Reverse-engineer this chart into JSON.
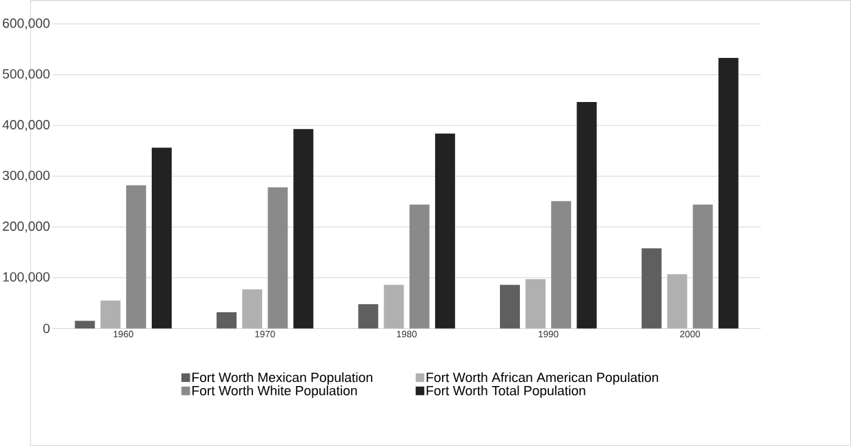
{
  "chart_data": {
    "type": "bar",
    "categories": [
      "1960",
      "1970",
      "1980",
      "1990",
      "2000"
    ],
    "series": [
      {
        "name": "Fort Worth Mexican Population",
        "color": "#5f5f5f",
        "values": [
          15000,
          32000,
          48000,
          86000,
          158000
        ]
      },
      {
        "name": "Fort Worth African American Population",
        "color": "#b0b0b0",
        "values": [
          55000,
          77000,
          86000,
          97000,
          107000
        ]
      },
      {
        "name": "Fort Worth White Population",
        "color": "#8a8a8a",
        "values": [
          282000,
          278000,
          244000,
          251000,
          244000
        ]
      },
      {
        "name": "Fort Worth Total Population",
        "color": "#222222",
        "values": [
          356000,
          393000,
          384000,
          446000,
          533000
        ]
      }
    ],
    "ylim": [
      0,
      600000
    ],
    "yticks": [
      {
        "value": 0,
        "label": "0"
      },
      {
        "value": 100000,
        "label": "100,000"
      },
      {
        "value": 200000,
        "label": "200,000"
      },
      {
        "value": 300000,
        "label": "300,000"
      },
      {
        "value": 400000,
        "label": "400,000"
      },
      {
        "value": 500000,
        "label": "500,000"
      },
      {
        "value": 600000,
        "label": "600,000"
      }
    ],
    "grid": "y",
    "legend": "bottom"
  }
}
